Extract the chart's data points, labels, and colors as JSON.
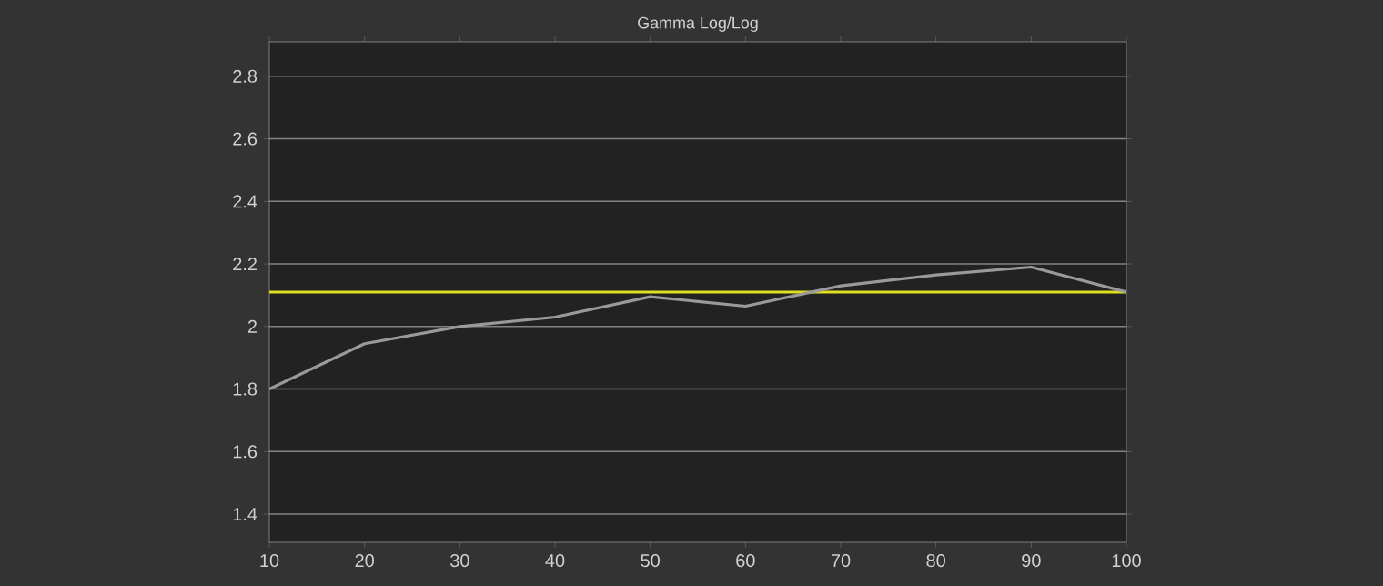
{
  "chart_data": {
    "type": "line",
    "title": "Gamma Log/Log",
    "x": [
      10,
      20,
      30,
      40,
      50,
      60,
      70,
      80,
      90,
      100
    ],
    "series": [
      {
        "color": "#9a9a9a",
        "values": [
          1.8,
          1.945,
          2.0,
          2.03,
          2.095,
          2.065,
          2.13,
          2.165,
          2.19,
          2.11
        ]
      }
    ],
    "xlim": [
      10,
      100
    ],
    "xticks": [
      10,
      20,
      30,
      40,
      50,
      60,
      70,
      80,
      90,
      100
    ],
    "ylim": [
      1.31,
      2.91
    ],
    "yticks": [
      1.4,
      1.6,
      1.8,
      2,
      2.2,
      2.4,
      2.6,
      2.8
    ],
    "ref_lines": [
      {
        "axis": "y",
        "value": 2.11,
        "color": "#e0e020"
      }
    ],
    "grid": "y",
    "marker": "none",
    "line_style": "solid"
  }
}
